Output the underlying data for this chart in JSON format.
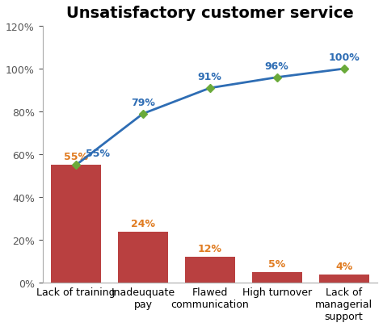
{
  "title": "Unsatisfactory customer service",
  "categories": [
    "Lack of training",
    "Inadeuquate\npay",
    "Flawed\ncommunication",
    "High turnover",
    "Lack of\nmanagerial\nsupport"
  ],
  "bar_values": [
    55,
    24,
    12,
    5,
    4
  ],
  "cumulative_values": [
    55,
    79,
    91,
    96,
    100
  ],
  "bar_color": "#b94040",
  "line_color": "#2e6db4",
  "marker_color": "#6aaa3a",
  "bar_label_color": "#e07b20",
  "line_label_color": "#2e6db4",
  "title_fontsize": 14,
  "label_fontsize": 9,
  "tick_fontsize": 9,
  "yticks_bar": [
    0,
    20,
    40,
    60,
    80,
    100,
    120
  ],
  "background_color": "#ffffff",
  "spine_color": "#aaaaaa"
}
